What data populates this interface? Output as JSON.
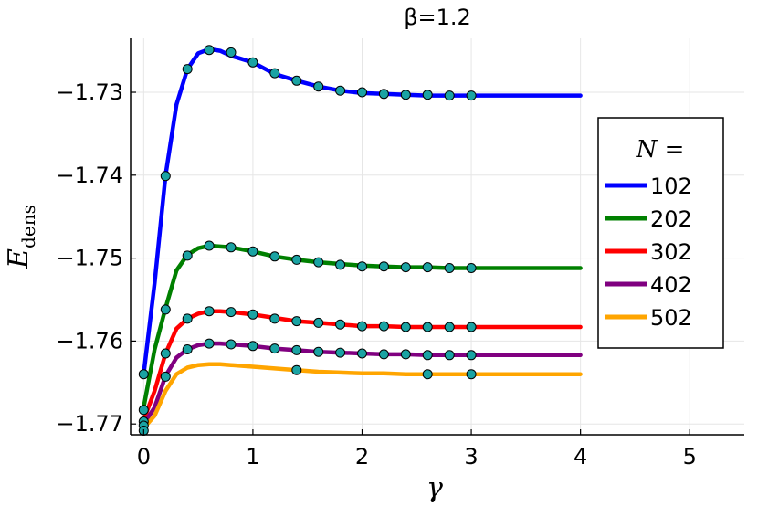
{
  "chart_data": {
    "type": "line",
    "title": "β=1.2",
    "xlabel": "γ",
    "ylabel_main": "E",
    "ylabel_sub": "dens",
    "legend_title": "N =",
    "legend_placement": "right",
    "grid": true,
    "xlim": [
      -0.12,
      5.5
    ],
    "ylim": [
      -1.7713,
      -1.7235
    ],
    "x_ticks": [
      0,
      1,
      2,
      3,
      4,
      5
    ],
    "x_tick_labels": [
      "0",
      "1",
      "2",
      "3",
      "4",
      "5"
    ],
    "y_ticks": [
      -1.73,
      -1.74,
      -1.75,
      -1.76,
      -1.77
    ],
    "y_tick_labels": [
      "−1.73",
      "−1.74",
      "−1.75",
      "−1.76",
      "−1.77"
    ],
    "marker_color": "#1aa3a3",
    "series": [
      {
        "name": "102",
        "color": "#0000ff",
        "line": [
          [
            0,
            -1.764
          ],
          [
            0.1,
            -1.753
          ],
          [
            0.2,
            -1.74
          ],
          [
            0.3,
            -1.7315
          ],
          [
            0.4,
            -1.7272
          ],
          [
            0.5,
            -1.7253
          ],
          [
            0.6,
            -1.7248
          ],
          [
            0.7,
            -1.725
          ],
          [
            0.8,
            -1.7256
          ],
          [
            1.0,
            -1.7264
          ],
          [
            1.2,
            -1.7278
          ],
          [
            1.4,
            -1.7286
          ],
          [
            1.6,
            -1.7293
          ],
          [
            1.8,
            -1.7298
          ],
          [
            2.0,
            -1.7301
          ],
          [
            2.2,
            -1.7302
          ],
          [
            2.4,
            -1.7303
          ],
          [
            2.6,
            -1.7304
          ],
          [
            2.8,
            -1.7304
          ],
          [
            3.0,
            -1.7304
          ],
          [
            3.5,
            -1.7304
          ],
          [
            4.0,
            -1.7304
          ]
        ],
        "markers": [
          [
            0,
            -1.764
          ],
          [
            0.2,
            -1.7401
          ],
          [
            0.4,
            -1.7272
          ],
          [
            0.6,
            -1.7249
          ],
          [
            0.8,
            -1.7252
          ],
          [
            1.0,
            -1.7264
          ],
          [
            1.2,
            -1.7277
          ],
          [
            1.4,
            -1.7286
          ],
          [
            1.6,
            -1.7293
          ],
          [
            1.8,
            -1.7298
          ],
          [
            2.0,
            -1.73
          ],
          [
            2.2,
            -1.7302
          ],
          [
            2.4,
            -1.7303
          ],
          [
            2.6,
            -1.7303
          ],
          [
            2.8,
            -1.7304
          ],
          [
            3.0,
            -1.7304
          ]
        ]
      },
      {
        "name": "202",
        "color": "#008000",
        "line": [
          [
            0,
            -1.768
          ],
          [
            0.1,
            -1.761
          ],
          [
            0.2,
            -1.756
          ],
          [
            0.3,
            -1.7515
          ],
          [
            0.4,
            -1.7496
          ],
          [
            0.5,
            -1.7488
          ],
          [
            0.6,
            -1.7485
          ],
          [
            0.7,
            -1.7486
          ],
          [
            0.8,
            -1.7487
          ],
          [
            1.0,
            -1.7492
          ],
          [
            1.2,
            -1.7498
          ],
          [
            1.4,
            -1.7502
          ],
          [
            1.6,
            -1.7505
          ],
          [
            1.8,
            -1.7507
          ],
          [
            2.0,
            -1.7509
          ],
          [
            2.2,
            -1.751
          ],
          [
            2.4,
            -1.7511
          ],
          [
            2.6,
            -1.7511
          ],
          [
            2.8,
            -1.7512
          ],
          [
            3.0,
            -1.7512
          ],
          [
            3.5,
            -1.7512
          ],
          [
            4.0,
            -1.7512
          ]
        ],
        "markers": [
          [
            0,
            -1.7683
          ],
          [
            0.2,
            -1.7562
          ],
          [
            0.4,
            -1.7497
          ],
          [
            0.6,
            -1.7485
          ],
          [
            0.8,
            -1.7487
          ],
          [
            1.0,
            -1.7492
          ],
          [
            1.2,
            -1.7498
          ],
          [
            1.4,
            -1.7502
          ],
          [
            1.6,
            -1.7505
          ],
          [
            1.8,
            -1.7508
          ],
          [
            2.0,
            -1.751
          ],
          [
            2.2,
            -1.751
          ],
          [
            2.4,
            -1.7511
          ],
          [
            2.6,
            -1.7511
          ],
          [
            2.8,
            -1.7512
          ],
          [
            3.0,
            -1.7512
          ]
        ]
      },
      {
        "name": "302",
        "color": "#ff0000",
        "line": [
          [
            0,
            -1.7695
          ],
          [
            0.1,
            -1.766
          ],
          [
            0.2,
            -1.7615
          ],
          [
            0.3,
            -1.7585
          ],
          [
            0.4,
            -1.7573
          ],
          [
            0.5,
            -1.7567
          ],
          [
            0.6,
            -1.7564
          ],
          [
            0.7,
            -1.7564
          ],
          [
            0.8,
            -1.7565
          ],
          [
            1.0,
            -1.7568
          ],
          [
            1.2,
            -1.7572
          ],
          [
            1.4,
            -1.7576
          ],
          [
            1.6,
            -1.7578
          ],
          [
            1.8,
            -1.758
          ],
          [
            2.0,
            -1.7582
          ],
          [
            2.2,
            -1.7582
          ],
          [
            2.4,
            -1.7583
          ],
          [
            2.6,
            -1.7583
          ],
          [
            2.8,
            -1.7583
          ],
          [
            3.0,
            -1.7583
          ],
          [
            3.5,
            -1.7583
          ],
          [
            4.0,
            -1.7583
          ]
        ],
        "markers": [
          [
            0,
            -1.7697
          ],
          [
            0.2,
            -1.7615
          ],
          [
            0.4,
            -1.7573
          ],
          [
            0.6,
            -1.7564
          ],
          [
            0.8,
            -1.7565
          ],
          [
            1.0,
            -1.7568
          ],
          [
            1.2,
            -1.7573
          ],
          [
            1.4,
            -1.7576
          ],
          [
            1.6,
            -1.7578
          ],
          [
            1.8,
            -1.758
          ],
          [
            2.0,
            -1.7582
          ],
          [
            2.2,
            -1.7582
          ],
          [
            2.4,
            -1.7583
          ],
          [
            2.6,
            -1.7583
          ],
          [
            2.8,
            -1.7583
          ],
          [
            3.0,
            -1.7583
          ]
        ]
      },
      {
        "name": "402",
        "color": "#800080",
        "line": [
          [
            0,
            -1.77
          ],
          [
            0.1,
            -1.768
          ],
          [
            0.2,
            -1.7642
          ],
          [
            0.3,
            -1.762
          ],
          [
            0.4,
            -1.761
          ],
          [
            0.5,
            -1.7605
          ],
          [
            0.6,
            -1.7603
          ],
          [
            0.7,
            -1.7603
          ],
          [
            0.8,
            -1.7604
          ],
          [
            1.0,
            -1.7606
          ],
          [
            1.2,
            -1.7609
          ],
          [
            1.4,
            -1.7611
          ],
          [
            1.6,
            -1.7613
          ],
          [
            1.8,
            -1.7614
          ],
          [
            2.0,
            -1.7615
          ],
          [
            2.2,
            -1.7616
          ],
          [
            2.4,
            -1.7616
          ],
          [
            2.6,
            -1.7617
          ],
          [
            2.8,
            -1.7617
          ],
          [
            3.0,
            -1.7617
          ],
          [
            3.5,
            -1.7617
          ],
          [
            4.0,
            -1.7617
          ]
        ],
        "markers": [
          [
            0,
            -1.7702
          ],
          [
            0.2,
            -1.7643
          ],
          [
            0.4,
            -1.761
          ],
          [
            0.6,
            -1.7603
          ],
          [
            0.8,
            -1.7604
          ],
          [
            1.0,
            -1.7606
          ],
          [
            1.2,
            -1.7609
          ],
          [
            1.4,
            -1.7611
          ],
          [
            1.6,
            -1.7613
          ],
          [
            1.8,
            -1.7614
          ],
          [
            2.0,
            -1.7615
          ],
          [
            2.2,
            -1.7616
          ],
          [
            2.4,
            -1.7616
          ],
          [
            2.6,
            -1.7617
          ],
          [
            2.8,
            -1.7617
          ],
          [
            3.0,
            -1.7617
          ]
        ]
      },
      {
        "name": "502",
        "color": "#ffa500",
        "line": [
          [
            0,
            -1.7705
          ],
          [
            0.1,
            -1.769
          ],
          [
            0.2,
            -1.766
          ],
          [
            0.3,
            -1.764
          ],
          [
            0.4,
            -1.7632
          ],
          [
            0.5,
            -1.7629
          ],
          [
            0.6,
            -1.7628
          ],
          [
            0.7,
            -1.7628
          ],
          [
            0.8,
            -1.7629
          ],
          [
            1.0,
            -1.7631
          ],
          [
            1.2,
            -1.7633
          ],
          [
            1.4,
            -1.7635
          ],
          [
            1.6,
            -1.7637
          ],
          [
            1.8,
            -1.7638
          ],
          [
            2.0,
            -1.7639
          ],
          [
            2.2,
            -1.7639
          ],
          [
            2.4,
            -1.764
          ],
          [
            2.6,
            -1.764
          ],
          [
            2.8,
            -1.764
          ],
          [
            3.0,
            -1.764
          ],
          [
            3.5,
            -1.764
          ],
          [
            4.0,
            -1.764
          ]
        ],
        "markers": [
          [
            0,
            -1.7708
          ],
          [
            1.4,
            -1.7635
          ],
          [
            2.6,
            -1.764
          ],
          [
            3.0,
            -1.764
          ]
        ]
      }
    ]
  }
}
